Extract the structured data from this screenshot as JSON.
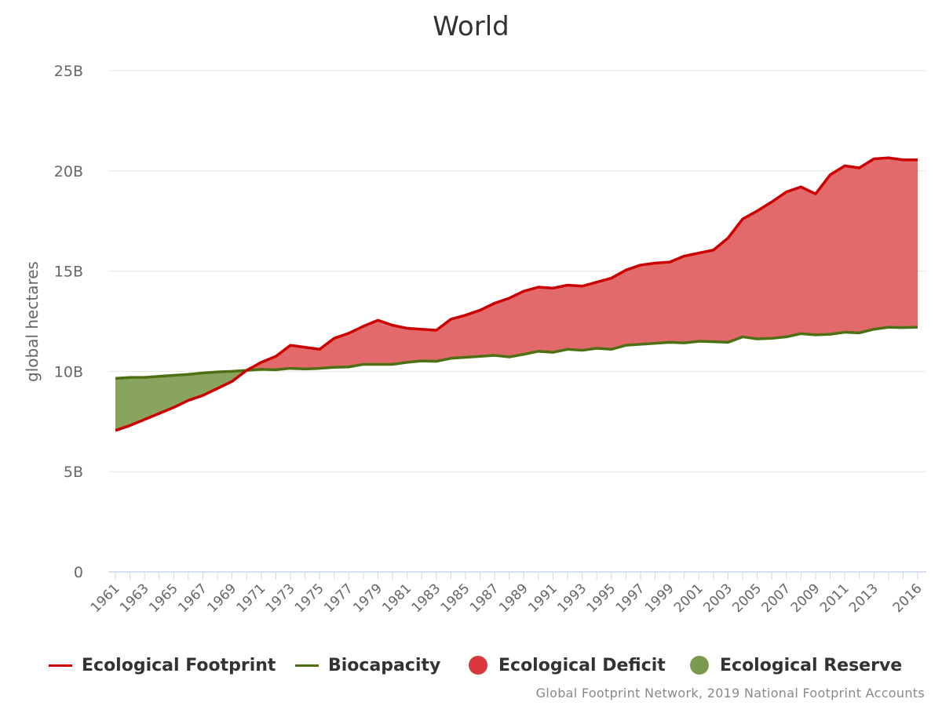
{
  "chart_data": {
    "type": "area",
    "title": "World",
    "ylabel": "global hectares",
    "xlabel": "",
    "ylim": [
      0,
      25000000000
    ],
    "yticks": [
      {
        "value": 0,
        "label": "0"
      },
      {
        "value": 5000000000,
        "label": "5B"
      },
      {
        "value": 10000000000,
        "label": "10B"
      },
      {
        "value": 15000000000,
        "label": "15B"
      },
      {
        "value": 20000000000,
        "label": "20B"
      },
      {
        "value": 25000000000,
        "label": "25B"
      }
    ],
    "xticks": [
      "1961",
      "1963",
      "1965",
      "1967",
      "1969",
      "1971",
      "1973",
      "1975",
      "1977",
      "1979",
      "1981",
      "1983",
      "1985",
      "1987",
      "1989",
      "1991",
      "1993",
      "1995",
      "1997",
      "1999",
      "2001",
      "2003",
      "2005",
      "2007",
      "2009",
      "2011",
      "2013",
      "2016"
    ],
    "x": [
      1961,
      1962,
      1963,
      1964,
      1965,
      1966,
      1967,
      1968,
      1969,
      1970,
      1971,
      1972,
      1973,
      1974,
      1975,
      1976,
      1977,
      1978,
      1979,
      1980,
      1981,
      1982,
      1983,
      1984,
      1985,
      1986,
      1987,
      1988,
      1989,
      1990,
      1991,
      1992,
      1993,
      1994,
      1995,
      1996,
      1997,
      1998,
      1999,
      2000,
      2001,
      2002,
      2003,
      2004,
      2005,
      2006,
      2007,
      2008,
      2009,
      2010,
      2011,
      2012,
      2013,
      2014,
      2015,
      2016
    ],
    "series": [
      {
        "name": "Ecological Footprint",
        "color": "#cc0000",
        "values": [
          7.05,
          7.3,
          7.6,
          7.9,
          8.2,
          8.55,
          8.8,
          9.15,
          9.5,
          10.05,
          10.45,
          10.75,
          11.3,
          11.2,
          11.1,
          11.65,
          11.9,
          12.25,
          12.55,
          12.3,
          12.15,
          12.1,
          12.05,
          12.6,
          12.8,
          13.05,
          13.4,
          13.65,
          14.0,
          14.2,
          14.15,
          14.3,
          14.25,
          14.45,
          14.65,
          15.05,
          15.3,
          15.4,
          15.45,
          15.75,
          15.9,
          16.05,
          16.65,
          17.6,
          18.0,
          18.45,
          18.95,
          19.2,
          18.85,
          19.8,
          20.25,
          20.15,
          20.6,
          20.65,
          20.55,
          20.55
        ]
      },
      {
        "name": "Biocapacity",
        "color": "#4d7014",
        "values": [
          9.65,
          9.7,
          9.7,
          9.75,
          9.8,
          9.85,
          9.92,
          9.97,
          10.0,
          10.05,
          10.1,
          10.08,
          10.15,
          10.12,
          10.15,
          10.2,
          10.22,
          10.35,
          10.35,
          10.35,
          10.45,
          10.52,
          10.5,
          10.65,
          10.7,
          10.75,
          10.8,
          10.72,
          10.85,
          11.0,
          10.95,
          11.1,
          11.05,
          11.15,
          11.1,
          11.3,
          11.35,
          11.4,
          11.45,
          11.42,
          11.5,
          11.48,
          11.45,
          11.72,
          11.62,
          11.65,
          11.72,
          11.88,
          11.82,
          11.85,
          11.95,
          11.92,
          12.1,
          12.2,
          12.18,
          12.2
        ]
      }
    ],
    "value_unit_multiplier": 1000000000,
    "areas": [
      {
        "name": "Ecological Deficit",
        "color": "#e05a5a"
      },
      {
        "name": "Ecological Reserve",
        "color": "#7b9a4d"
      }
    ],
    "grid": true,
    "legend_position": "bottom"
  },
  "legend": {
    "footprint": "Ecological Footprint",
    "biocapacity": "Biocapacity",
    "deficit": "Ecological Deficit",
    "reserve": "Ecological Reserve"
  },
  "credits": "Global Footprint Network, 2019 National Footprint Accounts"
}
